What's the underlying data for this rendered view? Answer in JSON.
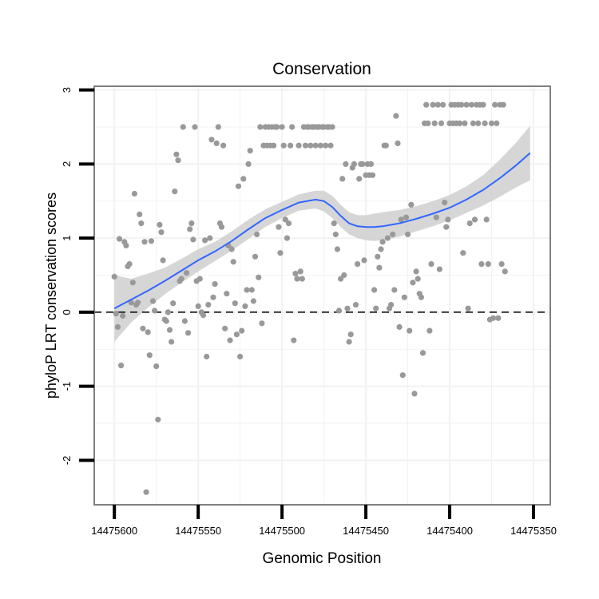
{
  "chart_data": {
    "type": "scatter",
    "title": "Conservation",
    "xlabel": "Genomic Position",
    "ylabel": "phyloP LRT conservation scores",
    "x_reversed": true,
    "xlim": [
      14475612,
      14475340
    ],
    "ylim": [
      -2.6,
      3.05
    ],
    "x_ticks": [
      14475600,
      14475550,
      14475500,
      14475450,
      14475400,
      14475350
    ],
    "x_tick_labels": [
      "14475600",
      "14475550",
      "14475500",
      "14475450",
      "14475400",
      "14475350"
    ],
    "y_ticks": [
      -2,
      -1,
      0,
      1,
      2,
      3
    ],
    "y_tick_labels": [
      "-2",
      "-1",
      "0",
      "1",
      "2",
      "3"
    ],
    "grid": true,
    "reference_line": {
      "y": 0,
      "style": "dashed",
      "color": "#000000"
    },
    "colors": {
      "points": "#999999",
      "smooth": "#3366ff",
      "band": "#cccccc",
      "panel_border": "#7f7f7f",
      "grid": "#f2f2f2"
    },
    "smooth": {
      "x": [
        14475600,
        14475590,
        14475580,
        14475570,
        14475560,
        14475550,
        14475540,
        14475530,
        14475520,
        14475510,
        14475500,
        14475490,
        14475480,
        14475475,
        14475470,
        14475465,
        14475460,
        14475455,
        14475450,
        14475445,
        14475440,
        14475430,
        14475420,
        14475410,
        14475400,
        14475390,
        14475380,
        14475370,
        14475360,
        14475352
      ],
      "y": [
        0.05,
        0.17,
        0.29,
        0.42,
        0.56,
        0.7,
        0.82,
        0.96,
        1.12,
        1.27,
        1.38,
        1.48,
        1.52,
        1.5,
        1.42,
        1.3,
        1.2,
        1.16,
        1.15,
        1.15,
        1.16,
        1.2,
        1.26,
        1.33,
        1.41,
        1.52,
        1.65,
        1.81,
        1.99,
        2.15
      ],
      "lower": [
        -0.4,
        -0.14,
        0.06,
        0.24,
        0.4,
        0.55,
        0.69,
        0.83,
        0.99,
        1.15,
        1.27,
        1.37,
        1.4,
        1.36,
        1.27,
        1.15,
        1.05,
        1.0,
        0.97,
        0.96,
        0.97,
        1.02,
        1.09,
        1.16,
        1.24,
        1.34,
        1.44,
        1.56,
        1.69,
        1.78
      ],
      "upper": [
        0.5,
        0.45,
        0.52,
        0.6,
        0.72,
        0.85,
        0.95,
        1.09,
        1.25,
        1.39,
        1.49,
        1.59,
        1.64,
        1.64,
        1.57,
        1.45,
        1.35,
        1.31,
        1.31,
        1.33,
        1.35,
        1.38,
        1.43,
        1.5,
        1.58,
        1.7,
        1.85,
        2.06,
        2.3,
        2.52
      ]
    },
    "points": [
      [
        14475600,
        0.48
      ],
      [
        14475599,
        -0.02
      ],
      [
        14475598,
        -0.2
      ],
      [
        14475597,
        0.99
      ],
      [
        14475596,
        -0.72
      ],
      [
        14475595,
        -0.05
      ],
      [
        14475594,
        0.95
      ],
      [
        14475593,
        0.9
      ],
      [
        14475592,
        0.62
      ],
      [
        14475591,
        0.65
      ],
      [
        14475590,
        0.13
      ],
      [
        14475589,
        0.4
      ],
      [
        14475588,
        1.6
      ],
      [
        14475587,
        0.1
      ],
      [
        14475586,
        0.13
      ],
      [
        14475585,
        1.32
      ],
      [
        14475584,
        1.2
      ],
      [
        14475583,
        -0.22
      ],
      [
        14475582,
        0.95
      ],
      [
        14475581,
        -2.43
      ],
      [
        14475580,
        -0.27
      ],
      [
        14475579,
        -0.58
      ],
      [
        14475578,
        0.96
      ],
      [
        14475577,
        0.15
      ],
      [
        14475576,
        0.02
      ],
      [
        14475575,
        -0.73
      ],
      [
        14475574,
        -1.45
      ],
      [
        14475573,
        1.18
      ],
      [
        14475572,
        1.08
      ],
      [
        14475571,
        0.7
      ],
      [
        14475570,
        -0.1
      ],
      [
        14475569,
        -0.12
      ],
      [
        14475568,
        0.0
      ],
      [
        14475567,
        -0.24
      ],
      [
        14475566,
        -0.4
      ],
      [
        14475565,
        0.12
      ],
      [
        14475564,
        1.63
      ],
      [
        14475563,
        2.13
      ],
      [
        14475562,
        2.05
      ],
      [
        14475561,
        0.42
      ],
      [
        14475560,
        0.45
      ],
      [
        14475559,
        2.5
      ],
      [
        14475558,
        -0.12
      ],
      [
        14475557,
        0.53
      ],
      [
        14475556,
        -0.28
      ],
      [
        14475555,
        1.12
      ],
      [
        14475554,
        1.2
      ],
      [
        14475553,
        0.98
      ],
      [
        14475552,
        2.5
      ],
      [
        14475551,
        0.42
      ],
      [
        14475550,
        0.08
      ],
      [
        14475549,
        0.45
      ],
      [
        14475548,
        0.0
      ],
      [
        14475547,
        -0.04
      ],
      [
        14475546,
        0.97
      ],
      [
        14475545,
        -0.6
      ],
      [
        14475544,
        0.1
      ],
      [
        14475543,
        1.0
      ],
      [
        14475542,
        2.33
      ],
      [
        14475541,
        0.2
      ],
      [
        14475540,
        0.38
      ],
      [
        14475539,
        2.28
      ],
      [
        14475538,
        2.5
      ],
      [
        14475537,
        1.2
      ],
      [
        14475536,
        1.15
      ],
      [
        14475535,
        2.25
      ],
      [
        14475534,
        -0.22
      ],
      [
        14475533,
        0.25
      ],
      [
        14475532,
        0.9
      ],
      [
        14475531,
        -0.38
      ],
      [
        14475530,
        0.85
      ],
      [
        14475529,
        0.68
      ],
      [
        14475528,
        0.12
      ],
      [
        14475527,
        -0.3
      ],
      [
        14475526,
        1.7
      ],
      [
        14475525,
        -0.6
      ],
      [
        14475524,
        -0.25
      ],
      [
        14475523,
        1.8
      ],
      [
        14475522,
        0.08
      ],
      [
        14475521,
        0.3
      ],
      [
        14475520,
        2.0
      ],
      [
        14475519,
        2.18
      ],
      [
        14475518,
        0.3
      ],
      [
        14475517,
        0.15
      ],
      [
        14475516,
        0.75
      ],
      [
        14475515,
        1.05
      ],
      [
        14475514,
        0.47
      ],
      [
        14475513,
        2.5
      ],
      [
        14475512,
        -0.15
      ],
      [
        14475511,
        2.25
      ],
      [
        14475510,
        2.5
      ],
      [
        14475509,
        2.25
      ],
      [
        14475508,
        2.5
      ],
      [
        14475507,
        2.25
      ],
      [
        14475506,
        2.5
      ],
      [
        14475505,
        2.25
      ],
      [
        14475504,
        2.5
      ],
      [
        14475503,
        2.5
      ],
      [
        14475502,
        1.15
      ],
      [
        14475501,
        0.8
      ],
      [
        14475500,
        2.5
      ],
      [
        14475499,
        2.25
      ],
      [
        14475498,
        1.25
      ],
      [
        14475497,
        1.0
      ],
      [
        14475496,
        1.2
      ],
      [
        14475495,
        2.25
      ],
      [
        14475494,
        2.5
      ],
      [
        14475493,
        -0.38
      ],
      [
        14475492,
        0.52
      ],
      [
        14475491,
        0.45
      ],
      [
        14475490,
        2.25
      ],
      [
        14475489,
        0.55
      ],
      [
        14475488,
        0.45
      ],
      [
        14475487,
        2.5
      ],
      [
        14475486,
        2.25
      ],
      [
        14475485,
        2.5
      ],
      [
        14475484,
        2.5
      ],
      [
        14475483,
        2.25
      ],
      [
        14475482,
        2.5
      ],
      [
        14475481,
        2.5
      ],
      [
        14475480,
        2.25
      ],
      [
        14475479,
        2.5
      ],
      [
        14475478,
        2.5
      ],
      [
        14475477,
        2.25
      ],
      [
        14475476,
        2.5
      ],
      [
        14475475,
        2.5
      ],
      [
        14475474,
        2.25
      ],
      [
        14475473,
        2.5
      ],
      [
        14475472,
        2.5
      ],
      [
        14475471,
        2.25
      ],
      [
        14475470,
        2.5
      ],
      [
        14475469,
        1.2
      ],
      [
        14475468,
        1.05
      ],
      [
        14475467,
        0.85
      ],
      [
        14475466,
        0.02
      ],
      [
        14475465,
        0.45
      ],
      [
        14475464,
        1.8
      ],
      [
        14475463,
        0.5
      ],
      [
        14475462,
        2.0
      ],
      [
        14475461,
        0.05
      ],
      [
        14475460,
        -0.4
      ],
      [
        14475459,
        -0.3
      ],
      [
        14475458,
        1.95
      ],
      [
        14475457,
        2.0
      ],
      [
        14475456,
        0.1
      ],
      [
        14475455,
        0.65
      ],
      [
        14475454,
        1.8
      ],
      [
        14475453,
        2.0
      ],
      [
        14475452,
        2.0
      ],
      [
        14475451,
        0.7
      ],
      [
        14475450,
        1.85
      ],
      [
        14475449,
        2.0
      ],
      [
        14475448,
        1.85
      ],
      [
        14475447,
        2.0
      ],
      [
        14475446,
        1.85
      ],
      [
        14475445,
        0.3
      ],
      [
        14475444,
        0.05
      ],
      [
        14475443,
        0.75
      ],
      [
        14475442,
        0.6
      ],
      [
        14475441,
        0.85
      ],
      [
        14475440,
        0.95
      ],
      [
        14475439,
        2.25
      ],
      [
        14475438,
        2.25
      ],
      [
        14475437,
        1.0
      ],
      [
        14475436,
        0.05
      ],
      [
        14475435,
        0.1
      ],
      [
        14475434,
        1.05
      ],
      [
        14475433,
        0.3
      ],
      [
        14475432,
        2.65
      ],
      [
        14475431,
        2.28
      ],
      [
        14475430,
        -0.2
      ],
      [
        14475429,
        1.25
      ],
      [
        14475428,
        -0.85
      ],
      [
        14475427,
        0.2
      ],
      [
        14475426,
        1.28
      ],
      [
        14475425,
        1.05
      ],
      [
        14475424,
        -0.25
      ],
      [
        14475423,
        1.45
      ],
      [
        14475422,
        0.4
      ],
      [
        14475421,
        -1.1
      ],
      [
        14475420,
        0.55
      ],
      [
        14475419,
        0.45
      ],
      [
        14475418,
        0.25
      ],
      [
        14475417,
        0.2
      ],
      [
        14475416,
        -0.55
      ],
      [
        14475415,
        2.55
      ],
      [
        14475414,
        2.8
      ],
      [
        14475413,
        2.55
      ],
      [
        14475412,
        -0.25
      ],
      [
        14475411,
        0.65
      ],
      [
        14475410,
        2.8
      ],
      [
        14475409,
        2.55
      ],
      [
        14475408,
        1.28
      ],
      [
        14475407,
        2.8
      ],
      [
        14475406,
        0.58
      ],
      [
        14475405,
        2.55
      ],
      [
        14475404,
        2.8
      ],
      [
        14475403,
        1.48
      ],
      [
        14475402,
        1.15
      ],
      [
        14475401,
        1.25
      ],
      [
        14475400,
        2.55
      ],
      [
        14475399,
        2.8
      ],
      [
        14475398,
        2.55
      ],
      [
        14475397,
        2.8
      ],
      [
        14475396,
        2.55
      ],
      [
        14475395,
        2.8
      ],
      [
        14475394,
        2.55
      ],
      [
        14475393,
        2.8
      ],
      [
        14475392,
        0.8
      ],
      [
        14475391,
        2.55
      ],
      [
        14475390,
        2.8
      ],
      [
        14475389,
        0.05
      ],
      [
        14475388,
        1.2
      ],
      [
        14475387,
        2.8
      ],
      [
        14475386,
        2.55
      ],
      [
        14475385,
        1.25
      ],
      [
        14475384,
        2.8
      ],
      [
        14475383,
        2.55
      ],
      [
        14475382,
        2.8
      ],
      [
        14475381,
        0.65
      ],
      [
        14475380,
        2.8
      ],
      [
        14475379,
        2.55
      ],
      [
        14475378,
        1.25
      ],
      [
        14475377,
        0.65
      ],
      [
        14475376,
        -0.1
      ],
      [
        14475375,
        2.55
      ],
      [
        14475374,
        -0.08
      ],
      [
        14475373,
        2.8
      ],
      [
        14475372,
        2.55
      ],
      [
        14475371,
        -0.08
      ],
      [
        14475370,
        2.8
      ],
      [
        14475369,
        0.65
      ],
      [
        14475368,
        2.8
      ],
      [
        14475367,
        0.55
      ]
    ]
  }
}
